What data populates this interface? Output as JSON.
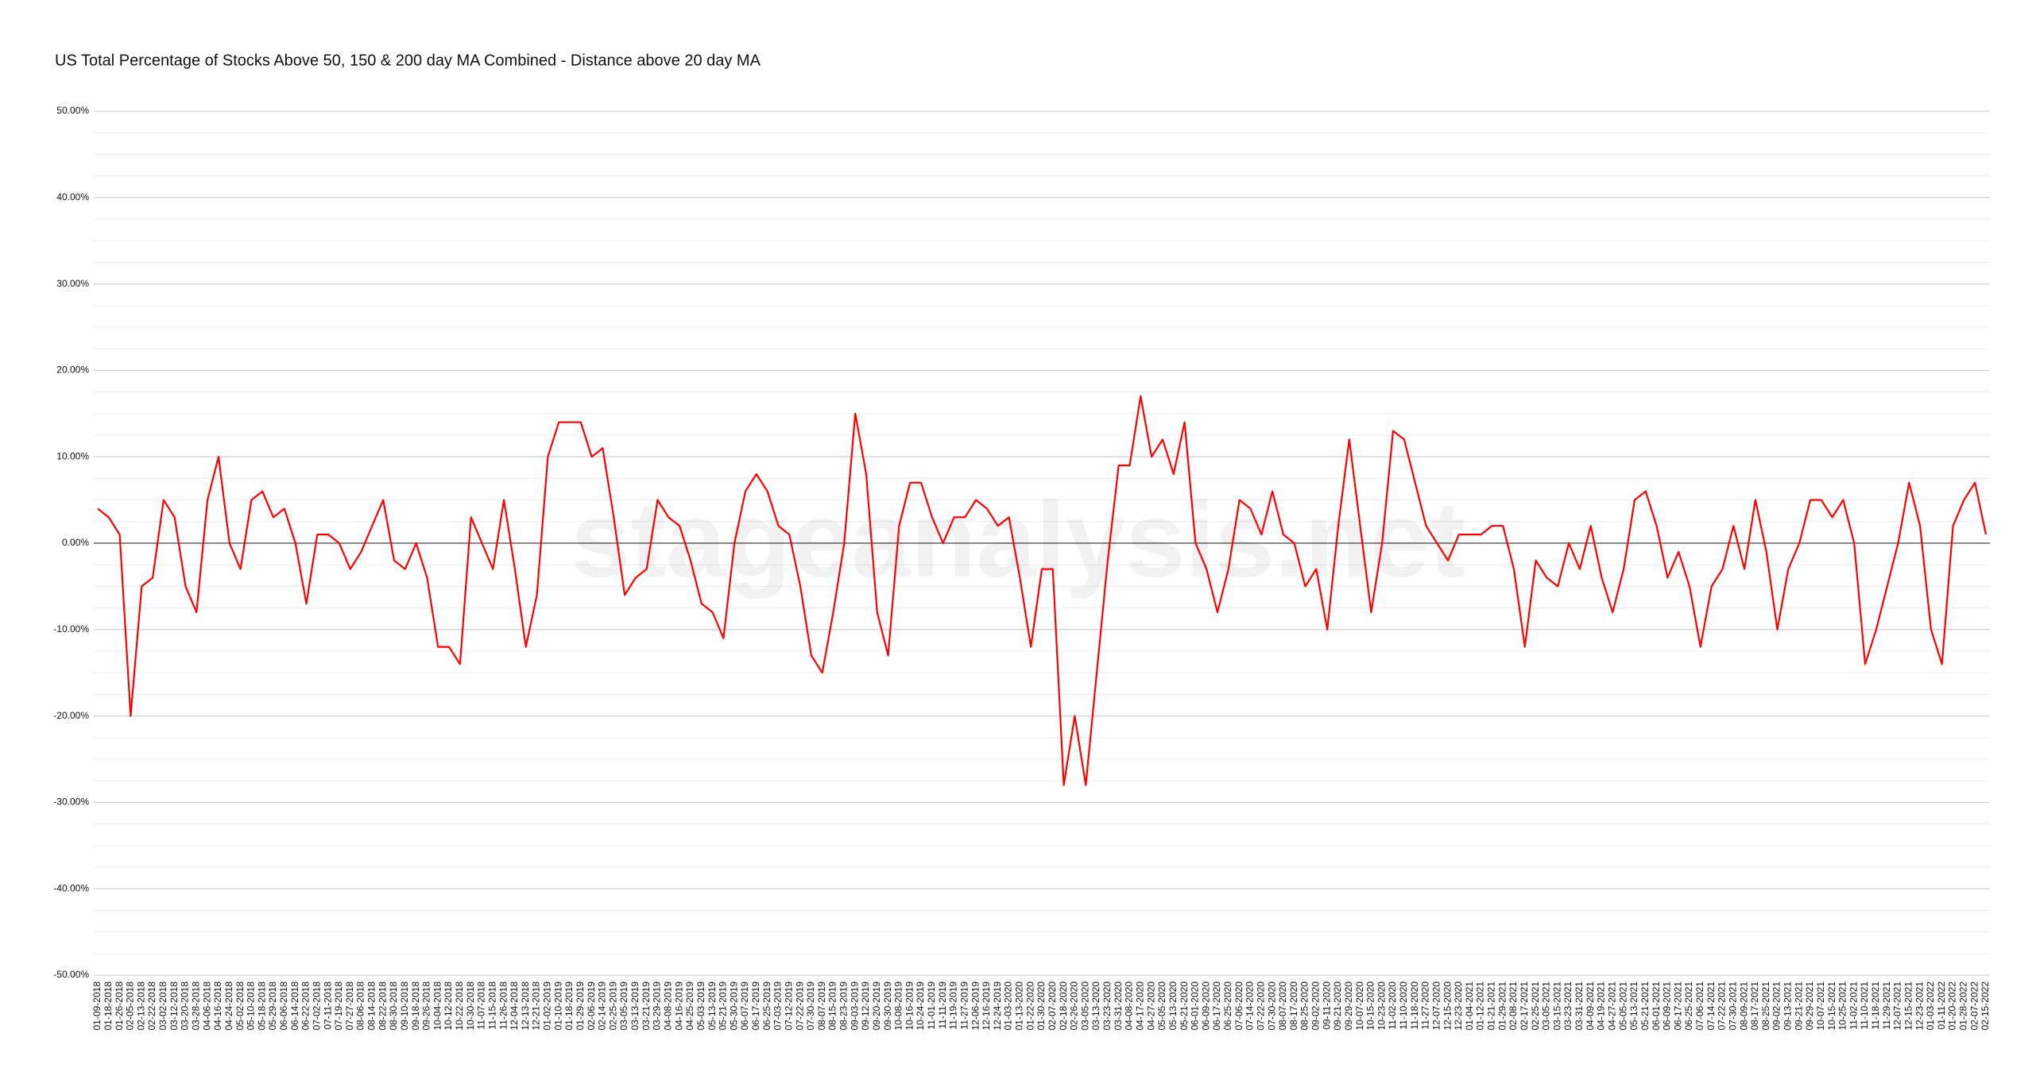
{
  "chart_data": {
    "type": "line",
    "title": "US Total Percentage of Stocks Above 50, 150 & 200 day MA Combined - Distance above 20 day MA",
    "watermark": "stageanalysis.net",
    "categories": [
      "01-09-2018",
      "01-18-2018",
      "01-26-2018",
      "02-05-2018",
      "02-13-2018",
      "02-22-2018",
      "03-02-2018",
      "03-12-2018",
      "03-20-2018",
      "03-28-2018",
      "04-06-2018",
      "04-16-2018",
      "04-24-2018",
      "05-02-2018",
      "05-10-2018",
      "05-18-2018",
      "05-29-2018",
      "06-06-2018",
      "06-14-2018",
      "06-22-2018",
      "07-02-2018",
      "07-11-2018",
      "07-19-2018",
      "07-27-2018",
      "08-06-2018",
      "08-14-2018",
      "08-22-2018",
      "08-30-2018",
      "09-10-2018",
      "09-18-2018",
      "09-26-2018",
      "10-04-2018",
      "10-12-2018",
      "10-22-2018",
      "10-30-2018",
      "11-07-2018",
      "11-15-2018",
      "11-26-2018",
      "12-04-2018",
      "12-13-2018",
      "12-21-2018",
      "01-02-2019",
      "01-10-2019",
      "01-18-2019",
      "01-29-2019",
      "02-06-2019",
      "02-14-2019",
      "02-25-2019",
      "03-05-2019",
      "03-13-2019",
      "03-21-2019",
      "03-29-2019",
      "04-08-2019",
      "04-16-2019",
      "04-25-2019",
      "05-03-2019",
      "05-13-2019",
      "05-21-2019",
      "05-30-2019",
      "06-07-2019",
      "06-17-2019",
      "06-25-2019",
      "07-03-2019",
      "07-12-2019",
      "07-22-2019",
      "07-30-2019",
      "08-07-2019",
      "08-15-2019",
      "08-23-2019",
      "09-03-2019",
      "09-12-2019",
      "09-20-2019",
      "09-30-2019",
      "10-08-2019",
      "10-16-2019",
      "10-24-2019",
      "11-01-2019",
      "11-11-2019",
      "11-19-2019",
      "11-27-2019",
      "12-06-2019",
      "12-16-2019",
      "12-24-2019",
      "01-03-2020",
      "01-13-2020",
      "01-22-2020",
      "01-30-2020",
      "02-07-2020",
      "02-18-2020",
      "02-26-2020",
      "03-05-2020",
      "03-13-2020",
      "03-23-2020",
      "03-31-2020",
      "04-08-2020",
      "04-17-2020",
      "04-27-2020",
      "05-05-2020",
      "05-13-2020",
      "05-21-2020",
      "06-01-2020",
      "06-09-2020",
      "06-17-2020",
      "06-25-2020",
      "07-06-2020",
      "07-14-2020",
      "07-22-2020",
      "07-30-2020",
      "08-07-2020",
      "08-17-2020",
      "08-25-2020",
      "09-02-2020",
      "09-11-2020",
      "09-21-2020",
      "09-29-2020",
      "10-07-2020",
      "10-15-2020",
      "10-23-2020",
      "11-02-2020",
      "11-10-2020",
      "11-18-2020",
      "11-27-2020",
      "12-07-2020",
      "12-15-2020",
      "12-23-2020",
      "01-04-2021",
      "01-12-2021",
      "01-21-2021",
      "01-29-2021",
      "02-08-2021",
      "02-17-2021",
      "02-25-2021",
      "03-05-2021",
      "03-15-2021",
      "03-23-2021",
      "03-31-2021",
      "04-09-2021",
      "04-19-2021",
      "04-27-2021",
      "05-05-2021",
      "05-13-2021",
      "05-21-2021",
      "06-01-2021",
      "06-09-2021",
      "06-17-2021",
      "06-25-2021",
      "07-06-2021",
      "07-14-2021",
      "07-22-2021",
      "07-30-2021",
      "08-09-2021",
      "08-17-2021",
      "08-25-2021",
      "09-02-2021",
      "09-13-2021",
      "09-21-2021",
      "09-29-2021",
      "10-07-2021",
      "10-15-2021",
      "10-25-2021",
      "11-02-2021",
      "11-10-2021",
      "11-18-2021",
      "11-29-2021",
      "12-07-2021",
      "12-15-2021",
      "12-23-2021",
      "01-03-2022",
      "01-11-2022",
      "01-20-2022",
      "01-28-2022",
      "02-07-2022",
      "02-15-2022"
    ],
    "series": [
      {
        "name": "Distance above 20 day MA",
        "color": "#ff0000",
        "values": [
          4,
          3,
          1,
          -20,
          -5,
          -4,
          5,
          3,
          -5,
          -8,
          5,
          10,
          0,
          -3,
          5,
          6,
          3,
          4,
          0,
          -7,
          1,
          1,
          0,
          -3,
          -1,
          2,
          5,
          -2,
          -3,
          0,
          -4,
          -12,
          -12,
          -14,
          3,
          0,
          -3,
          5,
          -3,
          -12,
          -6,
          10,
          14,
          14,
          14,
          10,
          11,
          3,
          -6,
          -4,
          -3,
          5,
          3,
          2,
          -2,
          -7,
          -8,
          -11,
          0,
          6,
          8,
          6,
          2,
          1,
          -5,
          -13,
          -15,
          -8,
          0,
          15,
          8,
          -8,
          -13,
          2,
          7,
          7,
          3,
          0,
          3,
          3,
          5,
          4,
          2,
          3,
          -4,
          -12,
          -3,
          -3,
          -28,
          -20,
          -28,
          -15,
          -2,
          9,
          9,
          17,
          10,
          12,
          8,
          14,
          0,
          -3,
          -8,
          -3,
          5,
          4,
          1,
          6,
          1,
          0,
          -5,
          -3,
          -10,
          2,
          12,
          2,
          -8,
          0,
          13,
          12,
          7,
          2,
          0,
          -2,
          1,
          1,
          1,
          2,
          2,
          -3,
          -12,
          -2,
          -4,
          -5,
          0,
          -3,
          2,
          -4,
          -8,
          -3,
          5,
          6,
          2,
          -4,
          -1,
          -5,
          -12,
          -5,
          -3,
          2,
          -3,
          5,
          -1,
          -10,
          -3,
          0,
          5,
          5,
          3,
          5,
          0,
          -14,
          -10,
          -5,
          0,
          7,
          2,
          -10,
          -14,
          2,
          5,
          7,
          1
        ]
      }
    ],
    "ylim": [
      -50,
      50
    ],
    "yticks": [
      {
        "value": -50,
        "label": "-50.00%"
      },
      {
        "value": -40,
        "label": "-40.00%"
      },
      {
        "value": -30,
        "label": "-30.00%"
      },
      {
        "value": -20,
        "label": "-20.00%"
      },
      {
        "value": -10,
        "label": "-10.00%"
      },
      {
        "value": 0,
        "label": "0.00%"
      },
      {
        "value": 10,
        "label": "10.00%"
      },
      {
        "value": 20,
        "label": "20.00%"
      },
      {
        "value": 30,
        "label": "30.00%"
      },
      {
        "value": 40,
        "label": "40.00%"
      },
      {
        "value": 50,
        "label": "50.00%"
      }
    ],
    "yminorticks": [
      -47.5,
      -45,
      -42.5,
      -37.5,
      -35,
      -32.5,
      -27.5,
      -25,
      -22.5,
      -17.5,
      -15,
      -12.5,
      -7.5,
      -5,
      -2.5,
      2.5,
      5,
      7.5,
      12.5,
      15,
      17.5,
      22.5,
      25,
      27.5,
      32.5,
      35,
      37.5,
      42.5,
      45,
      47.5
    ],
    "grid": true
  }
}
